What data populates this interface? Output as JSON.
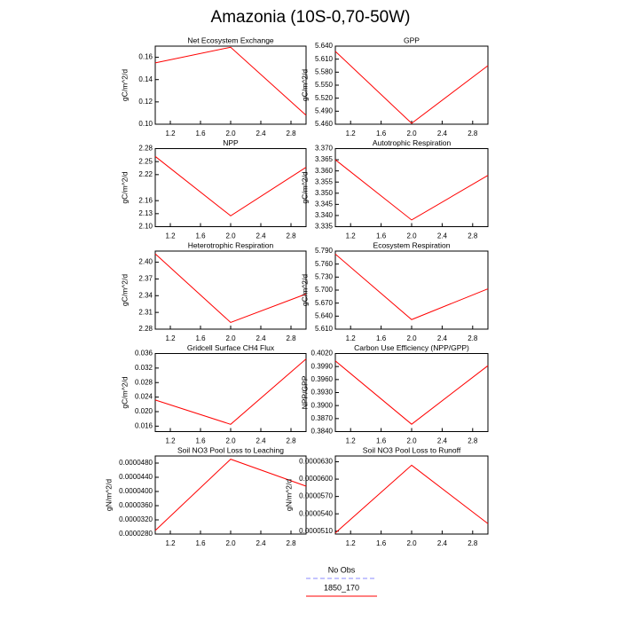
{
  "title": "Amazonia (10S-0,70-50W)",
  "legend": [
    {
      "name": "No Obs",
      "color": "#8888ff",
      "dash": true
    },
    {
      "name": "1850_170",
      "color": "#ff0000",
      "dash": false
    }
  ],
  "chart_data": [
    {
      "type": "line",
      "title": "Net Ecosystem Exchange",
      "ylabel": "gC/m^2/d",
      "x": [
        1,
        2,
        3
      ],
      "series": [
        {
          "color": "#ff0000",
          "values": [
            0.155,
            0.169,
            0.108
          ]
        }
      ],
      "xlim": [
        1,
        3
      ],
      "xticks": [
        1.2,
        1.6,
        {
          "value": 2,
          "label": "2.0"
        },
        2.4,
        2.8
      ],
      "ylim": [
        0.1,
        0.17
      ],
      "yticks": [
        {
          "value": 0.1,
          "label": "0.10"
        },
        0.12,
        0.14,
        0.16
      ]
    },
    {
      "type": "line",
      "title": "GPP",
      "ylabel": "gC/m^2/d",
      "x": [
        1,
        2,
        3
      ],
      "series": [
        {
          "color": "#ff0000",
          "values": [
            5.628,
            5.462,
            5.595
          ]
        }
      ],
      "xlim": [
        1,
        3
      ],
      "xticks": [
        1.2,
        1.6,
        {
          "value": 2,
          "label": "2.0"
        },
        2.4,
        2.8
      ],
      "ylim": [
        5.46,
        5.64
      ],
      "yticks": [
        {
          "value": 5.46,
          "label": "5.460"
        },
        {
          "value": 5.49,
          "label": "5.490"
        },
        {
          "value": 5.52,
          "label": "5.520"
        },
        {
          "value": 5.55,
          "label": "5.550"
        },
        {
          "value": 5.58,
          "label": "5.580"
        },
        {
          "value": 5.61,
          "label": "5.610"
        },
        {
          "value": 5.64,
          "label": "5.640"
        }
      ]
    },
    {
      "type": "line",
      "title": "NPP",
      "ylabel": "gC/m^2/d",
      "x": [
        1,
        2,
        3
      ],
      "series": [
        {
          "color": "#ff0000",
          "values": [
            2.262,
            2.125,
            2.237
          ]
        }
      ],
      "xlim": [
        1,
        3
      ],
      "xticks": [
        1.2,
        1.6,
        {
          "value": 2,
          "label": "2.0"
        },
        2.4,
        2.8
      ],
      "ylim": [
        2.1,
        2.28
      ],
      "yticks": [
        {
          "value": 2.1,
          "label": "2.10"
        },
        2.13,
        2.16,
        2.22,
        2.25,
        2.28
      ]
    },
    {
      "type": "line",
      "title": "Autotrophic Respiration",
      "ylabel": "gC/m^2/d",
      "x": [
        1,
        2,
        3
      ],
      "series": [
        {
          "color": "#ff0000",
          "values": [
            3.365,
            3.338,
            3.358
          ]
        }
      ],
      "xlim": [
        1,
        3
      ],
      "xticks": [
        1.2,
        1.6,
        {
          "value": 2,
          "label": "2.0"
        },
        2.4,
        2.8
      ],
      "ylim": [
        3.335,
        3.37
      ],
      "yticks": [
        3.335,
        {
          "value": 3.34,
          "label": "3.340"
        },
        3.345,
        {
          "value": 3.35,
          "label": "3.350"
        },
        3.355,
        {
          "value": 3.36,
          "label": "3.360"
        },
        3.365,
        {
          "value": 3.37,
          "label": "3.370"
        }
      ]
    },
    {
      "type": "line",
      "title": "Heterotrophic Respiration",
      "ylabel": "gC/m^2/d",
      "x": [
        1,
        2,
        3
      ],
      "series": [
        {
          "color": "#ff0000",
          "values": [
            2.415,
            2.292,
            2.343
          ]
        }
      ],
      "xlim": [
        1,
        3
      ],
      "xticks": [
        1.2,
        1.6,
        {
          "value": 2,
          "label": "2.0"
        },
        2.4,
        2.8
      ],
      "ylim": [
        2.28,
        2.42
      ],
      "yticks": [
        2.28,
        2.31,
        2.34,
        2.37,
        {
          "value": 2.4,
          "label": "2.40"
        }
      ]
    },
    {
      "type": "line",
      "title": "Ecosystem Respiration",
      "ylabel": "gC/m^2/d",
      "x": [
        1,
        2,
        3
      ],
      "series": [
        {
          "color": "#ff0000",
          "values": [
            5.783,
            5.632,
            5.703
          ]
        }
      ],
      "xlim": [
        1,
        3
      ],
      "xticks": [
        1.2,
        1.6,
        {
          "value": 2,
          "label": "2.0"
        },
        2.4,
        2.8
      ],
      "ylim": [
        5.61,
        5.79
      ],
      "yticks": [
        {
          "value": 5.61,
          "label": "5.610"
        },
        {
          "value": 5.64,
          "label": "5.640"
        },
        {
          "value": 5.67,
          "label": "5.670"
        },
        {
          "value": 5.7,
          "label": "5.700"
        },
        {
          "value": 5.73,
          "label": "5.730"
        },
        {
          "value": 5.76,
          "label": "5.760"
        },
        {
          "value": 5.79,
          "label": "5.790"
        }
      ]
    },
    {
      "type": "line",
      "title": "Gridcell Surface CH4 Flux",
      "ylabel": "gC/m^2/d",
      "x": [
        1,
        2,
        3
      ],
      "series": [
        {
          "color": "#ff0000",
          "values": [
            0.0232,
            0.0165,
            0.0345
          ]
        }
      ],
      "xlim": [
        1,
        3
      ],
      "xticks": [
        1.2,
        1.6,
        {
          "value": 2,
          "label": "2.0"
        },
        2.4,
        2.8
      ],
      "ylim": [
        0.0145,
        0.036
      ],
      "yticks": [
        0.016,
        {
          "value": 0.02,
          "label": "0.020"
        },
        0.024,
        0.028,
        0.032,
        0.036
      ]
    },
    {
      "type": "line",
      "title": "Carbon Use Efficiency (NPP/GPP)",
      "ylabel": "NPP/GPP",
      "x": [
        1,
        2,
        3
      ],
      "series": [
        {
          "color": "#ff0000",
          "values": [
            0.4003,
            0.3857,
            0.3992
          ]
        }
      ],
      "xlim": [
        1,
        3
      ],
      "xticks": [
        1.2,
        1.6,
        {
          "value": 2,
          "label": "2.0"
        },
        2.4,
        2.8
      ],
      "ylim": [
        0.384,
        0.402
      ],
      "yticks": [
        {
          "value": 0.384,
          "label": "0.3840"
        },
        {
          "value": 0.387,
          "label": "0.3870"
        },
        {
          "value": 0.39,
          "label": "0.3900"
        },
        {
          "value": 0.393,
          "label": "0.3930"
        },
        {
          "value": 0.396,
          "label": "0.3960"
        },
        {
          "value": 0.399,
          "label": "0.3990"
        },
        {
          "value": 0.402,
          "label": "0.4020"
        }
      ]
    },
    {
      "type": "line",
      "title": "Soil NO3 Pool Loss to Leaching",
      "ylabel": "gN/m^2/d",
      "x": [
        1,
        2,
        3
      ],
      "series": [
        {
          "color": "#ff0000",
          "values": [
            2.9e-05,
            4.91e-05,
            4.15e-05
          ]
        }
      ],
      "xlim": [
        1,
        3
      ],
      "xticks": [
        1.2,
        1.6,
        {
          "value": 2,
          "label": "2.0"
        },
        2.4,
        2.8
      ],
      "ylim": [
        2.8e-05,
        5e-05
      ],
      "yticks": [
        {
          "value": 2.8e-05,
          "label": "0.0000280"
        },
        {
          "value": 3.2e-05,
          "label": "0.0000320"
        },
        {
          "value": 3.6e-05,
          "label": "0.0000360"
        },
        {
          "value": 4e-05,
          "label": "0.0000400"
        },
        {
          "value": 4.4e-05,
          "label": "0.0000440"
        },
        {
          "value": 4.8e-05,
          "label": "0.0000480"
        }
      ]
    },
    {
      "type": "line",
      "title": "Soil NO3 Pool Loss to Runoff",
      "ylabel": "gN/m^2/d",
      "x": [
        1,
        2,
        3
      ],
      "series": [
        {
          "color": "#ff0000",
          "values": [
            5.07e-05,
            6.24e-05,
            5.23e-05
          ]
        }
      ],
      "xlim": [
        1,
        3
      ],
      "xticks": [
        1.2,
        1.6,
        {
          "value": 2,
          "label": "2.0"
        },
        2.4,
        2.8
      ],
      "ylim": [
        5.05e-05,
        6.4e-05
      ],
      "yticks": [
        {
          "value": 5.1e-05,
          "label": "0.0000510"
        },
        {
          "value": 5.4e-05,
          "label": "0.0000540"
        },
        {
          "value": 5.7e-05,
          "label": "0.0000570"
        },
        {
          "value": 6e-05,
          "label": "0.0000600"
        },
        {
          "value": 6.3e-05,
          "label": "0.0000630"
        }
      ]
    }
  ]
}
